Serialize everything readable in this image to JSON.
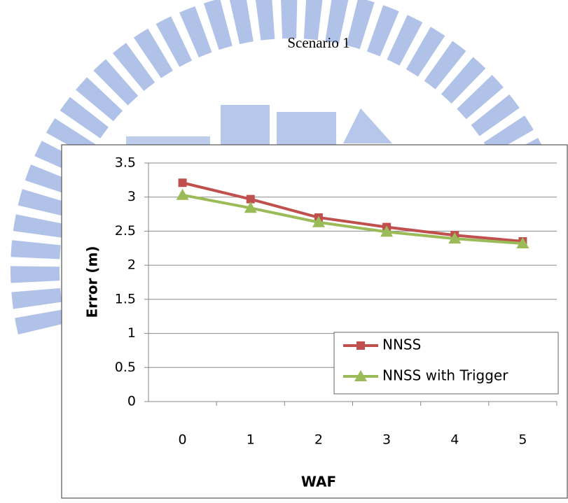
{
  "chart_data": {
    "type": "line",
    "title": "Scenario 1",
    "x_label": "WAF",
    "y_label": "Error (m)",
    "categories": [
      "0",
      "1",
      "2",
      "3",
      "4",
      "5"
    ],
    "series": [
      {
        "name": "NNSS",
        "color": "#c0504d",
        "marker": "square",
        "values": [
          3.21,
          2.97,
          2.7,
          2.56,
          2.44,
          2.35
        ]
      },
      {
        "name": "NNSS with Trigger",
        "color": "#9bbb59",
        "marker": "triangle",
        "values": [
          3.03,
          2.84,
          2.63,
          2.49,
          2.39,
          2.32
        ]
      }
    ],
    "ylim": [
      0,
      3.5
    ],
    "yticks": [
      0,
      0.5,
      1,
      1.5,
      2,
      2.5,
      3,
      3.5
    ],
    "grid": true,
    "legend": "lower right"
  }
}
